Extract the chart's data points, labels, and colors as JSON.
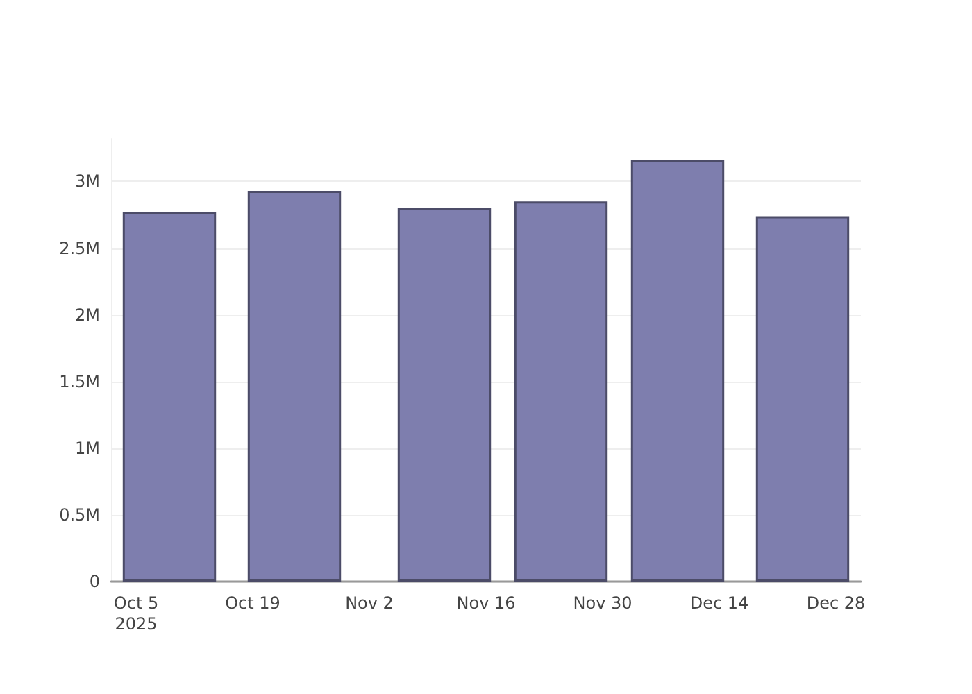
{
  "chart_data": {
    "type": "bar",
    "x": [
      "2025-10-09",
      "2025-10-24",
      "2025-11-11",
      "2025-11-25",
      "2025-12-09",
      "2025-12-24"
    ],
    "values": [
      2770000,
      2930000,
      2800000,
      2850000,
      3160000,
      2740000
    ],
    "color": "#7e7eae",
    "xlim": [
      "2025-10-02",
      "2025-12-31"
    ],
    "xticks": [
      {
        "value": "2025-10-05",
        "label": "Oct 5\n2025"
      },
      {
        "value": "2025-10-19",
        "label": "Oct 19"
      },
      {
        "value": "2025-11-02",
        "label": "Nov 2"
      },
      {
        "value": "2025-11-16",
        "label": "Nov 16"
      },
      {
        "value": "2025-11-30",
        "label": "Nov 30"
      },
      {
        "value": "2025-12-14",
        "label": "Dec 14"
      },
      {
        "value": "2025-12-28",
        "label": "Dec 28"
      }
    ],
    "yticks": [
      0,
      {
        "value": 500000,
        "label": "0.5M"
      },
      {
        "value": 1000000,
        "label": "1M"
      },
      {
        "value": 1500000,
        "label": "1.5M"
      },
      {
        "value": 2000000,
        "label": "2M"
      },
      {
        "value": 2500000,
        "label": "2.5M"
      },
      {
        "value": 3000000,
        "label": "3M"
      }
    ],
    "ylim": [
      0,
      3320000
    ],
    "grid": "y"
  }
}
